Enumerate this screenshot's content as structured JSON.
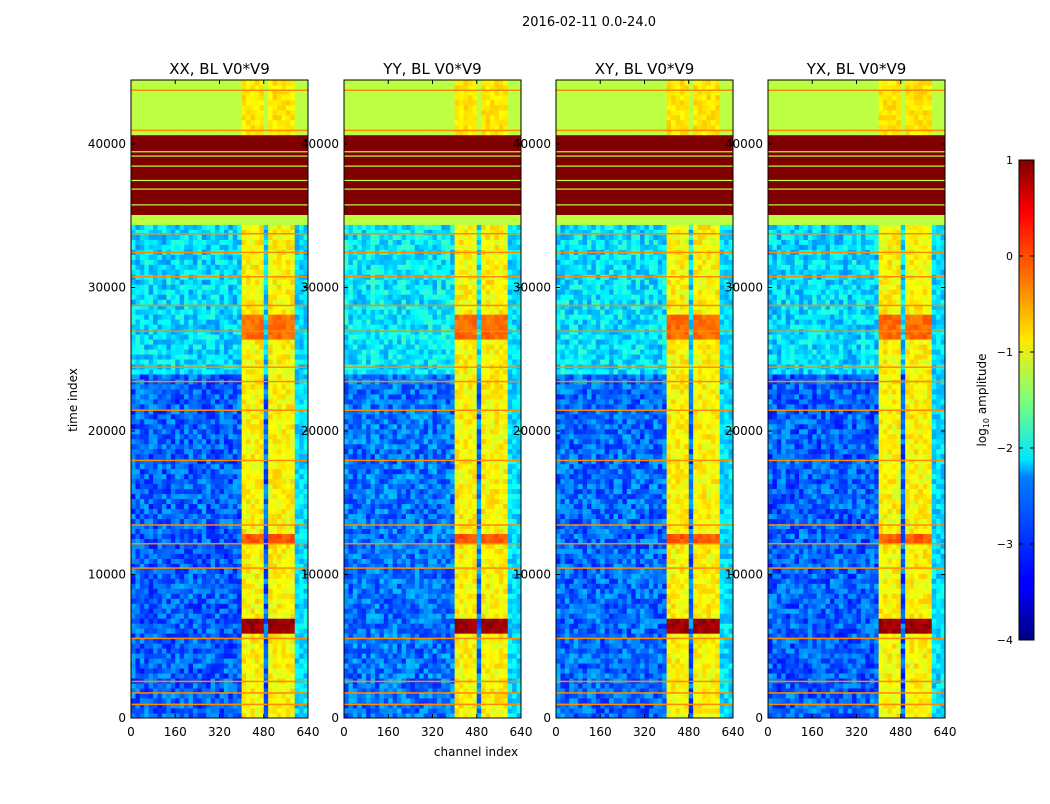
{
  "chart_data": {
    "type": "heatmap",
    "title": "2016-02-11 0.0-24.0",
    "xlabel": "channel index",
    "ylabel": "time index",
    "xlim": [
      0,
      640
    ],
    "ylim": [
      0,
      44460
    ],
    "xticks": [
      "0",
      "160",
      "320",
      "480",
      "640"
    ],
    "xtick_values": [
      0,
      160,
      320,
      480,
      640
    ],
    "yticks": [
      "0",
      "10000",
      "20000",
      "30000",
      "40000"
    ],
    "ytick_values": [
      0,
      10000,
      20000,
      30000,
      40000
    ],
    "colormap": "jet",
    "colorbar": {
      "label_prefix": "log",
      "label_sub": "10",
      "label_suffix": " amplitude",
      "range": [
        -4,
        1
      ],
      "ticks": [
        "1",
        "0",
        "−1",
        "−2",
        "−3",
        "−4"
      ],
      "tick_values": [
        1,
        0,
        -1,
        -2,
        -3,
        -4
      ]
    },
    "panels": [
      {
        "title": "XX, BL V0*V9",
        "offset": 0.0
      },
      {
        "title": "YY, BL V0*V9",
        "offset": 0.1
      },
      {
        "title": "XY, BL V0*V9",
        "offset": 0.05
      },
      {
        "title": "YX, BL V0*V9",
        "offset": 0.0
      }
    ],
    "bands": [
      {
        "t0": 0,
        "t1": 24000,
        "value": -3.0
      },
      {
        "t0": 24000,
        "t1": 34500,
        "value": -2.4
      },
      {
        "t0": 34500,
        "t1": 35000,
        "value": -1.2
      },
      {
        "t0": 35000,
        "t1": 40800,
        "value": 1.0
      },
      {
        "t0": 40800,
        "t1": 44460,
        "value": -1.2
      }
    ],
    "rfi_columns": [
      [
        405,
        442
      ],
      [
        448,
        488
      ],
      [
        494,
        542
      ],
      [
        548,
        597
      ]
    ],
    "rfi_value": -0.9,
    "rfi_hot": [
      {
        "t0": 5800,
        "t1": 7000,
        "value": 0.7
      },
      {
        "t0": 12000,
        "t1": 12800,
        "value": -0.2
      },
      {
        "t0": 26500,
        "t1": 28000,
        "value": -0.3
      }
    ],
    "bright_lines": [
      1000,
      1800,
      2600,
      5600,
      10500,
      12200,
      13500,
      18000,
      21500,
      23500,
      24500,
      27000,
      28800,
      30800,
      32500,
      33800,
      41000,
      43800
    ],
    "bright_line_value": -0.3,
    "dim_lines_in_saturated": [
      35800,
      36900,
      37500,
      38500,
      39200,
      39500
    ],
    "dim_line_value": -1.2
  }
}
